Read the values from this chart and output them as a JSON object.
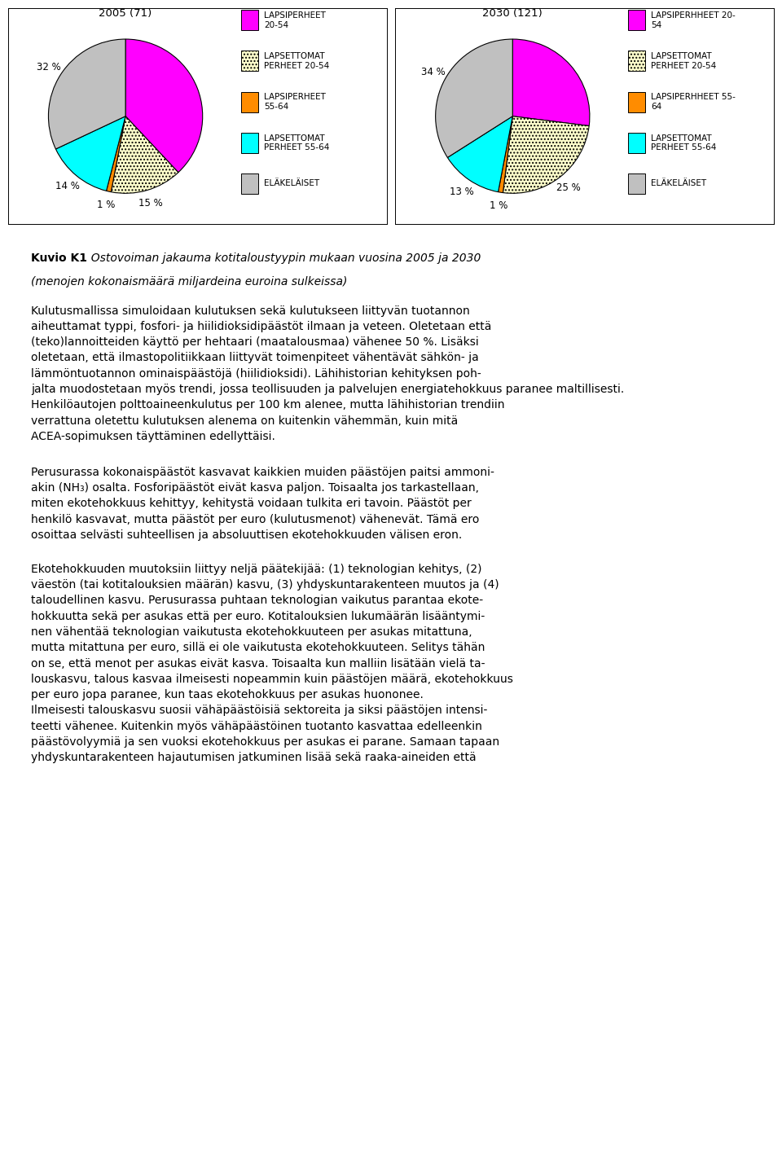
{
  "chart1": {
    "title": "2005 (71)",
    "values": [
      38,
      15,
      1,
      14,
      32
    ],
    "colors": [
      "#FF00FF",
      "#F5F0A0",
      "#FF8C00",
      "#00FFFF",
      "#C0C0C0"
    ],
    "pct_labels": [
      "",
      "15 %",
      "1 %",
      "14 %",
      "32 %"
    ],
    "startangle": 90
  },
  "chart2": {
    "title": "2030 (121)",
    "values": [
      27,
      25,
      1,
      13,
      34
    ],
    "colors": [
      "#FF00FF",
      "#F5F0A0",
      "#FF8C00",
      "#00FFFF",
      "#C0C0C0"
    ],
    "pct_labels": [
      "",
      "25 %",
      "1 %",
      "13 %",
      "34 %"
    ],
    "startangle": 90
  },
  "legend_labels_1": [
    "LAPSIPERHEET\n20-54",
    "LAPSETTOMAT\nPERHEET 20-54",
    "LAPSIPERHEET\n55-64",
    "LAPSETTOMAT\nPERHEET 55-64",
    "ELÄKELÄISET"
  ],
  "legend_labels_2": [
    "LAPSIPERHHEET 20-\n54",
    "LAPSETTOMAT\nPERHEET 20-54",
    "LAPSIPERHHEET 55-\n64",
    "LAPSETTOMAT\nPERHEET 55-64",
    "ELÄKELÄISET"
  ],
  "figsize": [
    9.6,
    14.34
  ],
  "dpi": 100
}
